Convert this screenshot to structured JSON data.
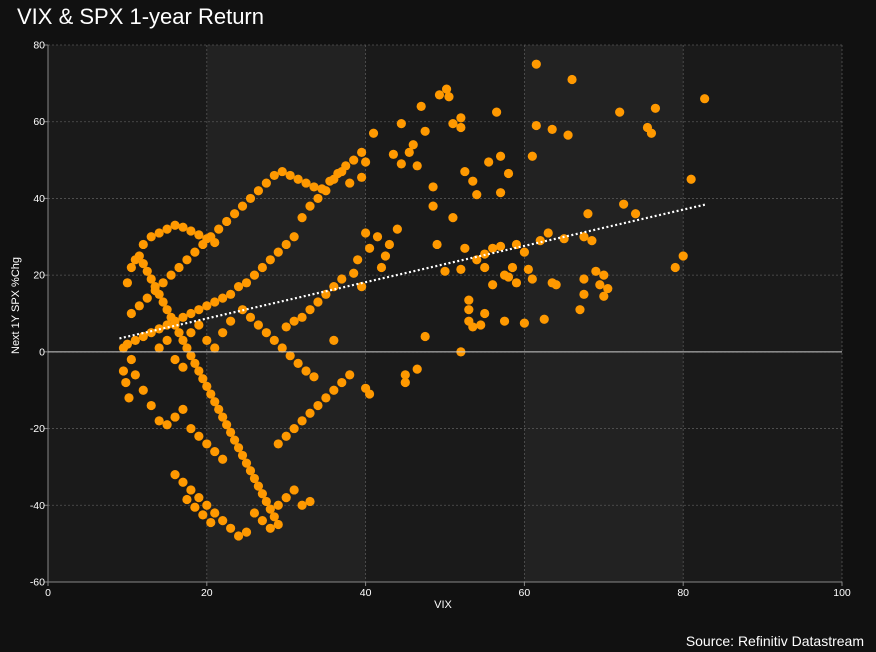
{
  "page": {
    "title": "VIX & SPX 1-year Return",
    "source": "Source: Refinitiv Datastream"
  },
  "colors": {
    "background": "#111111",
    "plot_background": "#1a1a1a",
    "points": "#ff9900",
    "trendline": "#ffffff",
    "zero_line": "#cccccc",
    "grid": "#555555"
  },
  "chart_data": {
    "type": "scatter",
    "title": "VIX & SPX 1-year Return",
    "xlabel": "VIX",
    "ylabel": "Next 1Y SPX %Chg",
    "xlim": [
      0,
      100
    ],
    "ylim": [
      -60,
      80
    ],
    "xticks": [
      0,
      20,
      40,
      60,
      80,
      100
    ],
    "yticks": [
      -60,
      -40,
      -20,
      0,
      20,
      40,
      60,
      80
    ],
    "grid": true,
    "trendline": {
      "style": "dotted",
      "x": [
        9,
        83
      ],
      "y": [
        3.5,
        38.5
      ]
    },
    "series": [
      {
        "points": [
          [
            50.2,
            68.5
          ],
          [
            50.5,
            66.5
          ],
          [
            49.3,
            67.0
          ],
          [
            61.5,
            75.0
          ],
          [
            66.0,
            71.0
          ],
          [
            82.7,
            66.0
          ],
          [
            76.5,
            63.5
          ],
          [
            72.0,
            62.5
          ],
          [
            56.5,
            62.5
          ],
          [
            52.0,
            61.0
          ],
          [
            47.0,
            64.0
          ],
          [
            44.5,
            59.5
          ],
          [
            52.0,
            58.5
          ],
          [
            61.5,
            59.0
          ],
          [
            63.5,
            58.0
          ],
          [
            65.5,
            56.5
          ],
          [
            75.5,
            58.5
          ],
          [
            76.0,
            57.0
          ],
          [
            74.0,
            36.0
          ],
          [
            72.5,
            38.5
          ],
          [
            68.0,
            36.0
          ],
          [
            81.0,
            45.0
          ],
          [
            80.0,
            25.0
          ],
          [
            79.0,
            22.0
          ],
          [
            69.0,
            21.0
          ],
          [
            70.0,
            20.0
          ],
          [
            69.5,
            17.5
          ],
          [
            70.5,
            16.5
          ],
          [
            70.0,
            14.5
          ],
          [
            67.5,
            19.0
          ],
          [
            67.5,
            15.0
          ],
          [
            67.0,
            11.0
          ],
          [
            68.5,
            29.0
          ],
          [
            67.5,
            30.0
          ],
          [
            65.0,
            29.5
          ],
          [
            63.0,
            31.0
          ],
          [
            62.0,
            29.0
          ],
          [
            60.0,
            26.0
          ],
          [
            59.0,
            28.0
          ],
          [
            58.5,
            22.0
          ],
          [
            58.0,
            19.5
          ],
          [
            59.0,
            18.0
          ],
          [
            57.5,
            20.0
          ],
          [
            60.5,
            21.5
          ],
          [
            61.0,
            19.0
          ],
          [
            63.5,
            18.0
          ],
          [
            64.0,
            17.5
          ],
          [
            60.0,
            7.5
          ],
          [
            57.5,
            8.0
          ],
          [
            62.5,
            8.5
          ],
          [
            55.0,
            10.0
          ],
          [
            54.5,
            7.0
          ],
          [
            53.0,
            8.0
          ],
          [
            53.5,
            6.5
          ],
          [
            53.0,
            11.0
          ],
          [
            53.0,
            13.5
          ],
          [
            56.0,
            17.5
          ],
          [
            55.0,
            22.0
          ],
          [
            55.0,
            25.5
          ],
          [
            56.0,
            27.0
          ],
          [
            54.0,
            24.0
          ],
          [
            57.0,
            27.5
          ],
          [
            52.5,
            47.0
          ],
          [
            53.5,
            44.5
          ],
          [
            54.0,
            41.0
          ],
          [
            57.0,
            41.5
          ],
          [
            57.0,
            51.0
          ],
          [
            58.0,
            46.5
          ],
          [
            55.5,
            49.5
          ],
          [
            61.0,
            51.0
          ],
          [
            51.0,
            59.5
          ],
          [
            52.5,
            27.0
          ],
          [
            52.0,
            21.5
          ],
          [
            50.0,
            21.0
          ],
          [
            49.0,
            28.0
          ],
          [
            51.0,
            35.0
          ],
          [
            48.5,
            38.0
          ],
          [
            48.5,
            43.0
          ],
          [
            47.5,
            57.5
          ],
          [
            46.5,
            48.5
          ],
          [
            46.0,
            54.0
          ],
          [
            45.5,
            52.0
          ],
          [
            44.5,
            49.0
          ],
          [
            43.5,
            51.5
          ],
          [
            52.0,
            0.0
          ],
          [
            47.5,
            4.0
          ],
          [
            46.5,
            -4.5
          ],
          [
            45.0,
            -6.0
          ],
          [
            45.0,
            -8.0
          ],
          [
            44.0,
            32.0
          ],
          [
            43.0,
            28.0
          ],
          [
            42.5,
            25.0
          ],
          [
            42.0,
            22.0
          ],
          [
            41.5,
            30.0
          ],
          [
            40.5,
            27.0
          ],
          [
            40.0,
            31.0
          ],
          [
            39.0,
            24.0
          ],
          [
            38.5,
            20.5
          ],
          [
            39.5,
            17.0
          ],
          [
            40.0,
            -9.5
          ],
          [
            40.5,
            -11.0
          ],
          [
            41.0,
            57.0
          ],
          [
            40.0,
            49.5
          ],
          [
            39.5,
            45.5
          ],
          [
            38.0,
            44.0
          ],
          [
            37.0,
            47.0
          ],
          [
            36.0,
            45.0
          ],
          [
            35.0,
            42.0
          ],
          [
            34.0,
            40.0
          ],
          [
            33.0,
            38.0
          ],
          [
            32.0,
            35.0
          ],
          [
            31.0,
            30.0
          ],
          [
            30.0,
            28.0
          ],
          [
            29.0,
            26.0
          ],
          [
            28.0,
            24.0
          ],
          [
            27.0,
            22.0
          ],
          [
            26.0,
            20.0
          ],
          [
            25.0,
            18.0
          ],
          [
            24.0,
            17.0
          ],
          [
            23.0,
            15.0
          ],
          [
            22.0,
            14.0
          ],
          [
            21.0,
            13.0
          ],
          [
            20.0,
            12.0
          ],
          [
            19.0,
            11.0
          ],
          [
            18.0,
            10.0
          ],
          [
            17.0,
            9.0
          ],
          [
            16.0,
            8.0
          ],
          [
            15.0,
            7.0
          ],
          [
            14.0,
            6.0
          ],
          [
            13.0,
            5.0
          ],
          [
            12.0,
            4.0
          ],
          [
            11.0,
            3.0
          ],
          [
            10.0,
            2.0
          ],
          [
            9.5,
            1.0
          ],
          [
            10.5,
            10.0
          ],
          [
            11.5,
            12.0
          ],
          [
            12.5,
            14.0
          ],
          [
            13.5,
            16.0
          ],
          [
            14.5,
            18.0
          ],
          [
            15.5,
            20.0
          ],
          [
            16.5,
            22.0
          ],
          [
            17.5,
            24.0
          ],
          [
            18.5,
            26.0
          ],
          [
            19.5,
            28.0
          ],
          [
            20.5,
            30.0
          ],
          [
            21.5,
            32.0
          ],
          [
            22.5,
            34.0
          ],
          [
            23.5,
            36.0
          ],
          [
            24.5,
            38.0
          ],
          [
            25.5,
            40.0
          ],
          [
            26.5,
            42.0
          ],
          [
            27.5,
            44.0
          ],
          [
            28.5,
            46.0
          ],
          [
            29.5,
            47.0
          ],
          [
            30.5,
            46.0
          ],
          [
            31.5,
            45.0
          ],
          [
            32.5,
            44.0
          ],
          [
            33.5,
            43.0
          ],
          [
            34.5,
            42.5
          ],
          [
            35.5,
            44.5
          ],
          [
            36.5,
            46.5
          ],
          [
            37.5,
            48.5
          ],
          [
            38.5,
            50.0
          ],
          [
            39.5,
            52.0
          ],
          [
            10.0,
            18.0
          ],
          [
            10.5,
            22.0
          ],
          [
            11.0,
            24.0
          ],
          [
            11.5,
            25.0
          ],
          [
            12.0,
            23.0
          ],
          [
            12.5,
            21.0
          ],
          [
            13.0,
            19.0
          ],
          [
            13.5,
            17.0
          ],
          [
            14.0,
            15.0
          ],
          [
            14.5,
            13.0
          ],
          [
            15.0,
            11.0
          ],
          [
            15.5,
            9.0
          ],
          [
            16.0,
            7.0
          ],
          [
            16.5,
            5.0
          ],
          [
            17.0,
            3.0
          ],
          [
            17.5,
            1.0
          ],
          [
            18.0,
            -1.0
          ],
          [
            18.5,
            -3.0
          ],
          [
            19.0,
            -5.0
          ],
          [
            19.5,
            -7.0
          ],
          [
            20.0,
            -9.0
          ],
          [
            20.5,
            -11.0
          ],
          [
            21.0,
            -13.0
          ],
          [
            21.5,
            -15.0
          ],
          [
            22.0,
            -17.0
          ],
          [
            22.5,
            -19.0
          ],
          [
            23.0,
            -21.0
          ],
          [
            23.5,
            -23.0
          ],
          [
            24.0,
            -25.0
          ],
          [
            24.5,
            -27.0
          ],
          [
            25.0,
            -29.0
          ],
          [
            25.5,
            -31.0
          ],
          [
            26.0,
            -33.0
          ],
          [
            26.5,
            -35.0
          ],
          [
            27.0,
            -37.0
          ],
          [
            27.5,
            -39.0
          ],
          [
            28.0,
            -41.0
          ],
          [
            28.5,
            -43.0
          ],
          [
            29.0,
            -45.0
          ],
          [
            25.0,
            -47.0
          ],
          [
            24.0,
            -48.0
          ],
          [
            23.0,
            -46.0
          ],
          [
            22.0,
            -44.0
          ],
          [
            21.0,
            -42.0
          ],
          [
            20.0,
            -40.0
          ],
          [
            19.0,
            -38.0
          ],
          [
            18.0,
            -36.0
          ],
          [
            17.0,
            -34.0
          ],
          [
            16.0,
            -32.0
          ],
          [
            17.5,
            -38.5
          ],
          [
            18.5,
            -40.5
          ],
          [
            19.5,
            -42.5
          ],
          [
            20.5,
            -44.5
          ],
          [
            26.0,
            -42.0
          ],
          [
            27.0,
            -44.0
          ],
          [
            28.0,
            -46.0
          ],
          [
            29.0,
            -40.0
          ],
          [
            30.0,
            -38.0
          ],
          [
            31.0,
            -36.0
          ],
          [
            32.0,
            -40.0
          ],
          [
            33.0,
            -39.0
          ],
          [
            29.0,
            -24.0
          ],
          [
            30.0,
            -22.0
          ],
          [
            31.0,
            -20.0
          ],
          [
            32.0,
            -18.0
          ],
          [
            33.0,
            -16.0
          ],
          [
            34.0,
            -14.0
          ],
          [
            35.0,
            -12.0
          ],
          [
            36.0,
            -10.0
          ],
          [
            37.0,
            -8.0
          ],
          [
            38.0,
            -6.0
          ],
          [
            33.5,
            -6.5
          ],
          [
            32.5,
            -5.0
          ],
          [
            31.5,
            -3.0
          ],
          [
            30.5,
            -1.0
          ],
          [
            29.5,
            1.0
          ],
          [
            28.5,
            3.0
          ],
          [
            27.5,
            5.0
          ],
          [
            26.5,
            7.0
          ],
          [
            25.5,
            9.0
          ],
          [
            24.5,
            11.0
          ],
          [
            32.0,
            9.0
          ],
          [
            33.0,
            11.0
          ],
          [
            34.0,
            13.0
          ],
          [
            35.0,
            15.0
          ],
          [
            36.0,
            17.0
          ],
          [
            37.0,
            19.0
          ],
          [
            36.0,
            3.0
          ],
          [
            30.0,
            6.5
          ],
          [
            31.0,
            8.0
          ],
          [
            9.5,
            -5.0
          ],
          [
            9.8,
            -8.0
          ],
          [
            10.2,
            -12.0
          ],
          [
            10.5,
            -2.0
          ],
          [
            11.0,
            -6.0
          ],
          [
            12.0,
            -10.0
          ],
          [
            13.0,
            -14.0
          ],
          [
            14.0,
            -18.0
          ],
          [
            15.0,
            -19.0
          ],
          [
            16.0,
            -17.0
          ],
          [
            17.0,
            -15.0
          ],
          [
            18.0,
            -20.0
          ],
          [
            19.0,
            -22.0
          ],
          [
            20.0,
            -24.0
          ],
          [
            21.0,
            -26.0
          ],
          [
            22.0,
            -28.0
          ],
          [
            12.0,
            28.0
          ],
          [
            13.0,
            30.0
          ],
          [
            14.0,
            31.0
          ],
          [
            15.0,
            32.0
          ],
          [
            16.0,
            33.0
          ],
          [
            17.0,
            32.5
          ],
          [
            18.0,
            31.5
          ],
          [
            19.0,
            30.5
          ],
          [
            20.0,
            29.5
          ],
          [
            21.0,
            28.5
          ],
          [
            14.0,
            1.0
          ],
          [
            15.0,
            3.0
          ],
          [
            16.0,
            -2.0
          ],
          [
            17.0,
            -4.0
          ],
          [
            18.0,
            5.0
          ],
          [
            19.0,
            7.0
          ],
          [
            20.0,
            3.0
          ],
          [
            21.0,
            1.0
          ],
          [
            22.0,
            5.0
          ],
          [
            23.0,
            8.0
          ]
        ]
      }
    ]
  }
}
